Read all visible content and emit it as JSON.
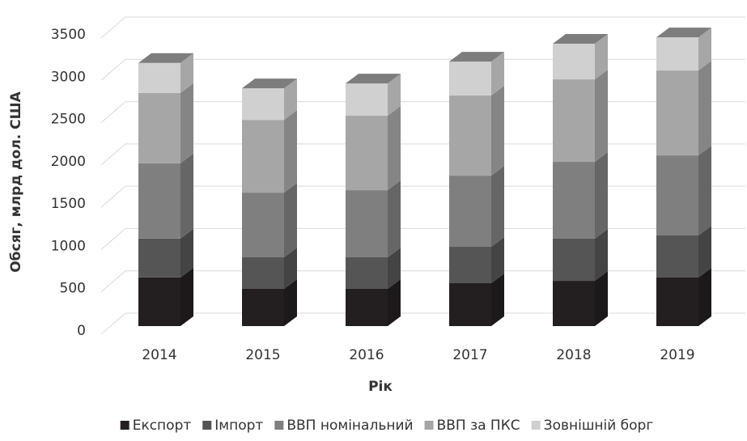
{
  "chart_data": {
    "type": "bar3d_stacked",
    "x_label": "Рік",
    "y_label": "Обсяг, млрд дол. США",
    "categories": [
      "2014",
      "2015",
      "2016",
      "2017",
      "2018",
      "2019"
    ],
    "series": [
      {
        "name": "Експорт",
        "color": "#231f20",
        "values": [
          575,
          440,
          440,
          507,
          535,
          574
        ]
      },
      {
        "name": "Імпорт",
        "color": "#555555",
        "values": [
          460,
          373,
          373,
          430,
          498,
          497
        ]
      },
      {
        "name": "ВВП номінальний",
        "color": "#7f7f7f",
        "values": [
          890,
          764,
          793,
          841,
          908,
          946
        ]
      },
      {
        "name": "ВВП за ПКС",
        "color": "#a6a6a6",
        "values": [
          830,
          860,
          880,
          947,
          975,
          1004
        ]
      },
      {
        "name": "Зовнішній борг",
        "color": "#d0d0d0",
        "values": [
          355,
          373,
          382,
          401,
          421,
          392
        ]
      }
    ],
    "ylim": [
      0,
      3500
    ],
    "yticks": [
      0,
      500,
      1000,
      1500,
      2000,
      2500,
      3000,
      3500
    ],
    "grid": true,
    "legend": "bottom"
  }
}
